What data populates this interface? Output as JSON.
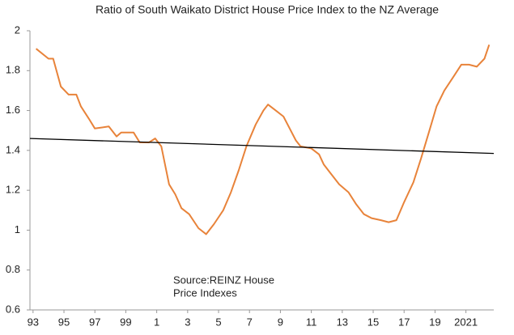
{
  "chart_data": {
    "type": "line",
    "title": "Ratio of South Waikato District House Price Index to the NZ Average",
    "annotation": [
      "Source:REINZ House",
      "Price Indexes"
    ],
    "xlim": [
      1992.8,
      2022.8
    ],
    "xticks": [
      {
        "value": 1993,
        "label": "93"
      },
      {
        "value": 1995,
        "label": "95"
      },
      {
        "value": 1997,
        "label": "97"
      },
      {
        "value": 1999,
        "label": "99"
      },
      {
        "value": 2001,
        "label": "1"
      },
      {
        "value": 2003,
        "label": "3"
      },
      {
        "value": 2005,
        "label": "5"
      },
      {
        "value": 2007,
        "label": "7"
      },
      {
        "value": 2009,
        "label": "9"
      },
      {
        "value": 2011,
        "label": "11"
      },
      {
        "value": 2013,
        "label": "13"
      },
      {
        "value": 2015,
        "label": "15"
      },
      {
        "value": 2017,
        "label": "17"
      },
      {
        "value": 2019,
        "label": "19"
      },
      2021
    ],
    "ylim": [
      0.6,
      2
    ],
    "yticks": [
      0.6,
      0.8,
      1,
      1.2,
      1.4,
      1.6,
      1.8,
      2
    ],
    "series": [
      {
        "color": "#e8833a",
        "x": [
          1993.2,
          1994.0,
          1994.3,
          1994.8,
          1995.3,
          1995.8,
          1996.1,
          1996.6,
          1997.0,
          1997.9,
          1998.4,
          1998.7,
          1999.5,
          1999.9,
          2000.5,
          2000.9,
          2001.3,
          2001.8,
          2002.2,
          2002.6,
          2003.1,
          2003.7,
          2004.2,
          2004.7,
          2005.3,
          2005.8,
          2006.3,
          2006.8,
          2007.4,
          2007.9,
          2008.2,
          2008.7,
          2009.2,
          2009.6,
          2010.0,
          2010.3,
          2011.0,
          2011.5,
          2011.8,
          2012.2,
          2012.8,
          2013.4,
          2013.9,
          2014.4,
          2014.9,
          2015.5,
          2016.0,
          2016.5,
          2017.0,
          2017.6,
          2018.1,
          2018.6,
          2019.1,
          2019.6,
          2020.2,
          2020.7,
          2021.2,
          2021.7,
          2022.2,
          2022.5
        ],
        "values": [
          1.91,
          1.86,
          1.86,
          1.72,
          1.68,
          1.68,
          1.62,
          1.56,
          1.51,
          1.52,
          1.47,
          1.49,
          1.49,
          1.44,
          1.44,
          1.46,
          1.42,
          1.23,
          1.18,
          1.11,
          1.08,
          1.01,
          0.98,
          1.03,
          1.1,
          1.19,
          1.3,
          1.42,
          1.53,
          1.6,
          1.63,
          1.6,
          1.57,
          1.51,
          1.45,
          1.42,
          1.41,
          1.38,
          1.33,
          1.29,
          1.23,
          1.19,
          1.13,
          1.08,
          1.06,
          1.05,
          1.04,
          1.05,
          1.14,
          1.24,
          1.36,
          1.49,
          1.62,
          1.7,
          1.77,
          1.83,
          1.83,
          1.82,
          1.86,
          1.93
        ]
      },
      {
        "color": "#000000",
        "x": [
          1992.8,
          2022.8
        ],
        "values": [
          1.46,
          1.385
        ]
      }
    ]
  }
}
